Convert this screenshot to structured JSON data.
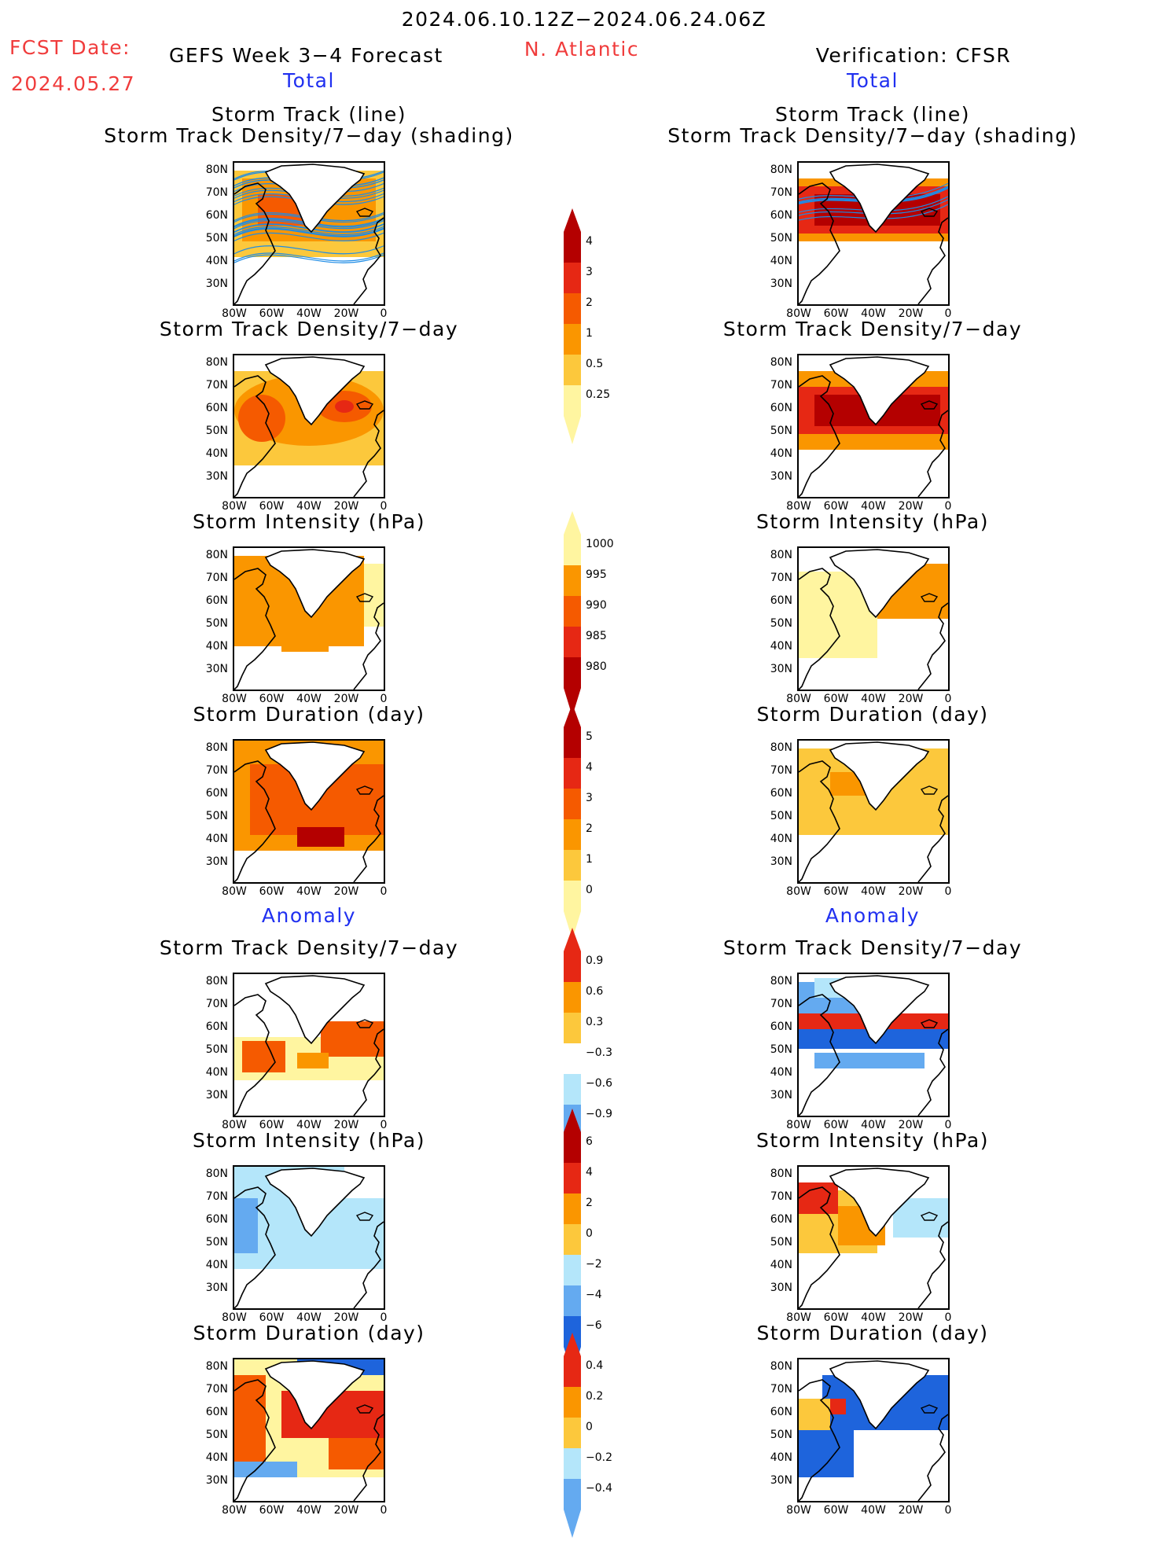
{
  "header": {
    "period": "2024.06.10.12Z−2024.06.24.06Z",
    "fcst_label": "FCST Date:",
    "fcst_date": "2024.05.27",
    "forecast_title": "GEFS Week 3−4 Forecast",
    "region": "N. Atlantic",
    "verification": "Verification: CFSR"
  },
  "sections": {
    "total": "Total",
    "anomaly": "Anomaly"
  },
  "panel_titles": {
    "track_line": "Storm Track (line)",
    "track_shading": "Storm Track Density/7−day (shading)",
    "density": "Storm Track Density/7−day",
    "intensity": "Storm Intensity (hPa)",
    "duration": "Storm Duration (day)"
  },
  "axes": {
    "lat_labels": [
      "80N",
      "70N",
      "60N",
      "50N",
      "40N",
      "30N"
    ],
    "lon_labels": [
      "80W",
      "60W",
      "40W",
      "20W",
      "0"
    ]
  },
  "colorbars": {
    "density_total": [
      "0.25",
      "0.5",
      "1",
      "2",
      "3",
      "4"
    ],
    "intensity_total": [
      "1000",
      "995",
      "990",
      "985",
      "980"
    ],
    "duration_total": [
      "0",
      "1",
      "2",
      "3",
      "4",
      "5"
    ],
    "density_anom": [
      "0.9",
      "0.6",
      "0.3",
      "−0.3",
      "−0.6",
      "−0.9"
    ],
    "intensity_anom": [
      "6",
      "4",
      "2",
      "0",
      "−2",
      "−4",
      "−6"
    ],
    "duration_anom": [
      "0.4",
      "0.2",
      "0",
      "−0.2",
      "−0.4"
    ]
  },
  "colors": {
    "dark_red": "#b40000",
    "red": "#e62814",
    "orange_red": "#f55a00",
    "orange": "#fa9600",
    "light_orange": "#fcc83c",
    "pale_yellow": "#fff5a0",
    "light_blue": "#b4e6fa",
    "mid_blue": "#64aaf0",
    "blue": "#1e64dc",
    "track_blue": "#1e8ce6"
  }
}
